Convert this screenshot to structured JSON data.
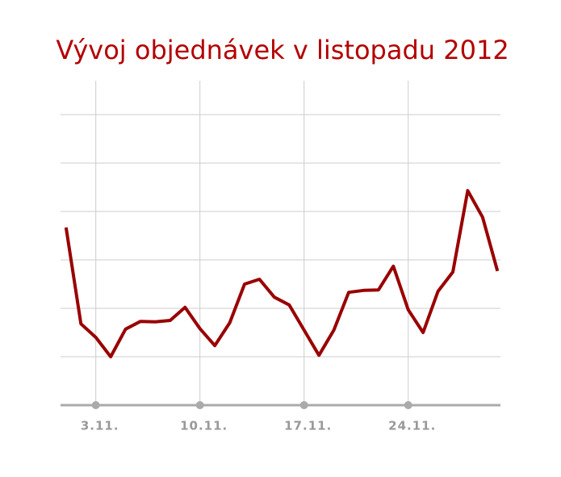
{
  "chart_data": {
    "type": "line",
    "title": "Vývoj objednávek v listopadu 2012",
    "x": [
      1,
      2,
      3,
      4,
      5,
      6,
      7,
      8,
      9,
      10,
      11,
      12,
      13,
      14,
      15,
      16,
      17,
      18,
      19,
      20,
      21,
      22,
      23,
      24,
      25,
      26,
      27,
      28,
      29,
      30
    ],
    "series": [
      {
        "color": "#990000",
        "values": [
          3.67,
          1.68,
          1.4,
          1.0,
          1.57,
          1.73,
          1.72,
          1.75,
          2.02,
          1.58,
          1.23,
          1.7,
          2.5,
          2.6,
          2.23,
          2.07,
          1.55,
          1.03,
          1.55,
          2.33,
          2.37,
          2.38,
          2.87,
          1.97,
          1.5,
          2.35,
          2.75,
          4.43,
          3.88,
          2.77
        ]
      }
    ],
    "xlim": [
      0.63,
      30.2
    ],
    "xticks": [
      {
        "value": 3,
        "label": "3.11."
      },
      {
        "value": 10,
        "label": "10.11."
      },
      {
        "value": 17,
        "label": "17.11."
      },
      {
        "value": 24,
        "label": "24.11."
      }
    ],
    "ylim": [
      0,
      6
    ],
    "yticks": [
      1,
      2,
      3,
      4,
      5,
      6
    ],
    "grid": true
  }
}
